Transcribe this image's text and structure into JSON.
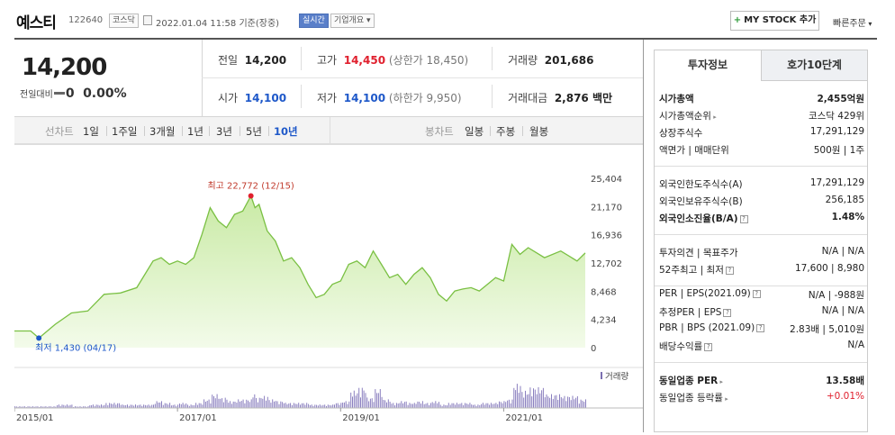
{
  "header": {
    "title": "예스티",
    "code": "122640",
    "market_badge": "코스닥",
    "datetime": "2022.01.04 11:58",
    "basis": "기준(장중)",
    "realtime_badge": "실시간",
    "company_info": "기업개요",
    "mystock_button": "MY STOCK 추가",
    "quick_order": "빠른주문"
  },
  "summary": {
    "price": "14,200",
    "change_label": "전일대비",
    "change_value": "0",
    "change_pct": "0.00%",
    "prev_close_label": "전일",
    "prev_close": "14,200",
    "open_label": "시가",
    "open": "14,100",
    "high_label": "고가",
    "high": "14,450",
    "upper_limit": "(상한가 18,450)",
    "low_label": "저가",
    "low": "14,100",
    "lower_limit": "(하한가 9,950)",
    "volume_label": "거래량",
    "volume": "201,686",
    "amount_label": "거래대금",
    "amount": "2,876 백만"
  },
  "period_tabs": {
    "line_label": "선차트",
    "line": [
      "1일",
      "1주일",
      "3개월",
      "1년",
      "3년",
      "5년",
      "10년"
    ],
    "active": "10년",
    "candle_label": "봉차트",
    "candle": [
      "일봉",
      "주봉",
      "월봉"
    ]
  },
  "chart_data": {
    "type": "area",
    "title": "",
    "x_ticks": [
      "2015/01",
      "2017/01",
      "2019/01",
      "2021/01"
    ],
    "y_ticks": [
      "25,404",
      "21,170",
      "16,936",
      "12,702",
      "8,468",
      "4,234",
      "0"
    ],
    "ylim": [
      0,
      25404
    ],
    "volume_label": "거래량",
    "max_label": "최고 22,772 (12/15)",
    "min_label": "최저 1,430 (04/17)",
    "line_color": "#7ac043",
    "fill_color": "#e6f5d6",
    "x": [
      2015.0,
      2015.2,
      2015.3,
      2015.5,
      2015.7,
      2015.9,
      2016.1,
      2016.3,
      2016.5,
      2016.7,
      2016.8,
      2016.9,
      2017.0,
      2017.1,
      2017.2,
      2017.3,
      2017.4,
      2017.5,
      2017.6,
      2017.7,
      2017.8,
      2017.9,
      2017.95,
      2018.0,
      2018.1,
      2018.2,
      2018.3,
      2018.4,
      2018.5,
      2018.6,
      2018.7,
      2018.8,
      2018.9,
      2019.0,
      2019.1,
      2019.2,
      2019.3,
      2019.4,
      2019.5,
      2019.6,
      2019.7,
      2019.8,
      2019.9,
      2020.0,
      2020.1,
      2020.2,
      2020.3,
      2020.4,
      2020.5,
      2020.6,
      2020.7,
      2020.8,
      2020.9,
      2021.0,
      2021.1,
      2021.2,
      2021.3,
      2021.5,
      2021.7,
      2021.9,
      2022.0
    ],
    "values": [
      2500,
      2500,
      1430,
      3500,
      5200,
      5500,
      8000,
      8200,
      9000,
      13000,
      13500,
      12500,
      13000,
      12500,
      13500,
      17000,
      21000,
      19000,
      18000,
      20000,
      20500,
      22772,
      21000,
      21500,
      17500,
      16000,
      13000,
      13500,
      12000,
      9500,
      7500,
      8000,
      9500,
      10000,
      12500,
      13000,
      12000,
      14500,
      12500,
      10500,
      11000,
      9500,
      11000,
      12000,
      10500,
      8000,
      7000,
      8500,
      8800,
      9000,
      8500,
      9500,
      10500,
      10000,
      15500,
      14000,
      15000,
      13500,
      14500,
      13000,
      14200
    ],
    "volume": [
      1,
      1,
      1,
      2,
      1,
      2,
      3,
      2,
      2,
      4,
      3,
      2,
      3,
      2,
      3,
      5,
      8,
      6,
      4,
      5,
      5,
      9,
      6,
      7,
      5,
      4,
      3,
      3,
      3,
      2,
      2,
      2,
      3,
      4,
      10,
      12,
      6,
      11,
      5,
      3,
      4,
      3,
      4,
      3,
      4,
      2,
      3,
      3,
      3,
      2,
      3,
      3,
      4,
      5,
      14,
      10,
      12,
      8,
      7,
      5,
      4
    ]
  },
  "panel": {
    "tabs": [
      "투자정보",
      "호가10단계"
    ],
    "rows1": [
      {
        "k": "시가총액",
        "v": "2,455억원",
        "bold": true
      },
      {
        "k": "시가총액순위",
        "v": "코스닥 429위",
        "bold": false
      },
      {
        "k": "상장주식수",
        "v": "17,291,129",
        "bold": false
      },
      {
        "k": "액면가 | 매매단위",
        "v": "500원 | 1주",
        "bold": false
      }
    ],
    "rows2": [
      {
        "k": "외국인한도주식수(A)",
        "v": "17,291,129",
        "bold": false
      },
      {
        "k": "외국인보유주식수(B)",
        "v": "256,185",
        "bold": false
      },
      {
        "k": "외국인소진율(B/A)",
        "v": "1.48%",
        "bold": true
      }
    ],
    "rows3": [
      {
        "k": "투자의견 | 목표주가",
        "v": "N/A | N/A",
        "bold": false
      },
      {
        "k": "52주최고 | 최저",
        "v": "17,600 | 8,980",
        "bold": false
      }
    ],
    "rows4": [
      {
        "k": "PER | EPS(2021.09)",
        "v": "N/A | -988원",
        "bold": false
      },
      {
        "k": "추정PER | EPS",
        "v": "N/A | N/A",
        "bold": false
      },
      {
        "k": "PBR | BPS (2021.09)",
        "v": "2.83배 | 5,010원",
        "bold": false
      },
      {
        "k": "배당수익률",
        "v": "N/A",
        "bold": false
      }
    ],
    "rows5": [
      {
        "k": "동일업종 PER",
        "v": "13.58배",
        "bold": true
      },
      {
        "k": "동일업종 등락률",
        "v": "+0.01%",
        "bold": false,
        "red": true
      }
    ]
  }
}
